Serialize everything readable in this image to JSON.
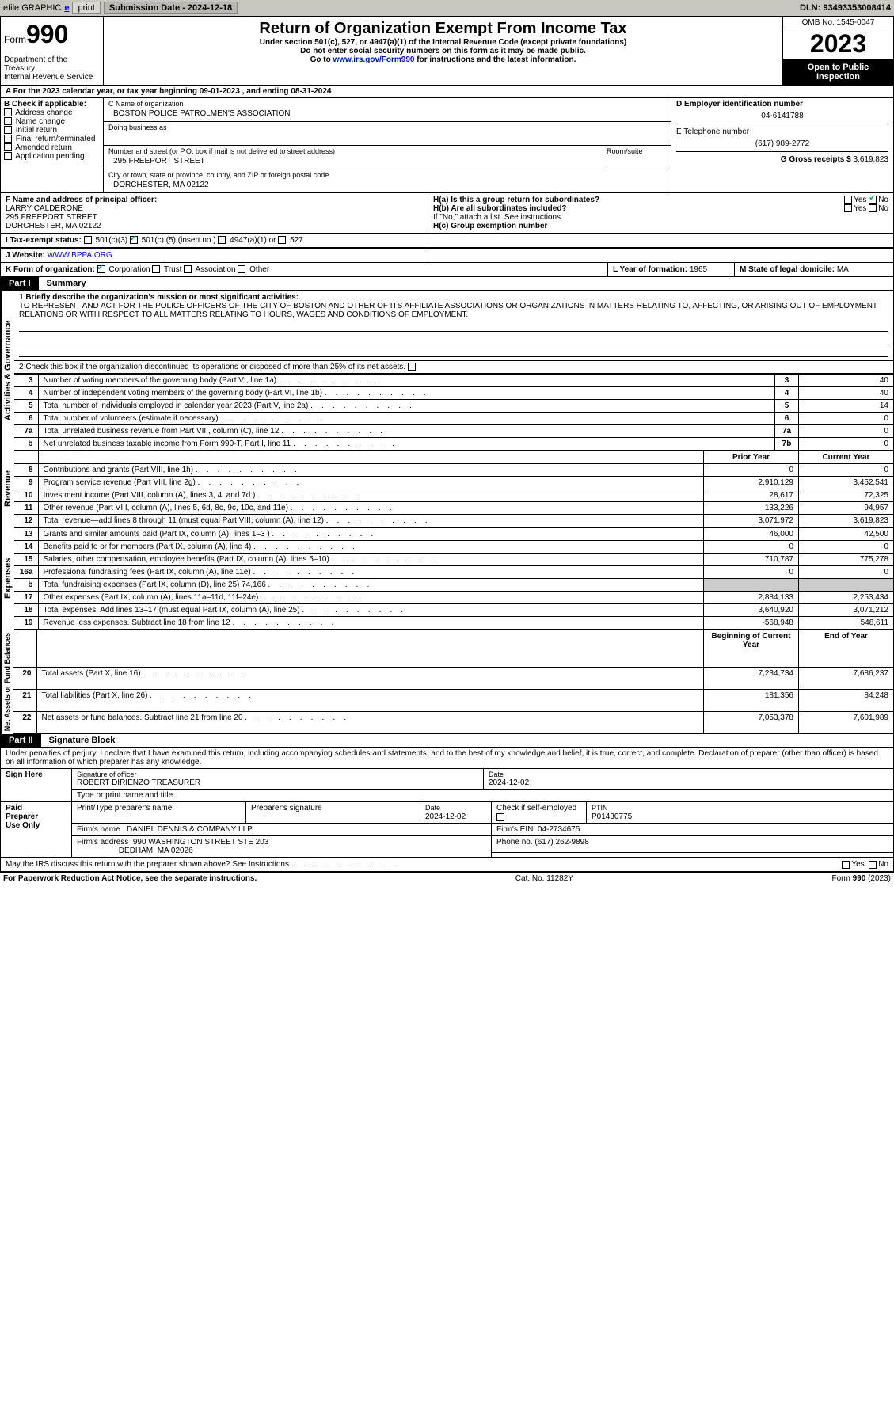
{
  "topbar": {
    "efile_label": "efile GRAPHIC",
    "print_btn": "print",
    "submission_label": "Submission Date - 2024-12-18",
    "dln_label": "DLN: 93493353008414"
  },
  "header": {
    "form_label": "Form",
    "form_no": "990",
    "dept": "Department of the Treasury",
    "irs": "Internal Revenue Service",
    "title": "Return of Organization Exempt From Income Tax",
    "subtitle1": "Under section 501(c), 527, or 4947(a)(1) of the Internal Revenue Code (except private foundations)",
    "subtitle2": "Do not enter social security numbers on this form as it may be made public.",
    "subtitle3_pre": "Go to ",
    "subtitle3_link": "www.irs.gov/Form990",
    "subtitle3_post": " for instructions and the latest information.",
    "omb": "OMB No. 1545-0047",
    "year": "2023",
    "otpi": "Open to Public Inspection"
  },
  "line_a": "A  For the 2023 calendar year, or tax year beginning 09-01-2023    , and ending 08-31-2024",
  "box_b": {
    "label": "B Check if applicable:",
    "items": [
      "Address change",
      "Name change",
      "Initial return",
      "Final return/terminated",
      "Amended return",
      "Application pending"
    ]
  },
  "box_c": {
    "name_label": "C Name of organization",
    "name": "BOSTON POLICE PATROLMEN'S ASSOCIATION",
    "dba_label": "Doing business as",
    "street_label": "Number and street (or P.O. box if mail is not delivered to street address)",
    "room_label": "Room/suite",
    "street": "295 FREEPORT STREET",
    "city_label": "City or town, state or province, country, and ZIP or foreign postal code",
    "city": "DORCHESTER, MA  02122"
  },
  "box_d": {
    "label": "D Employer identification number",
    "value": "04-6141788"
  },
  "box_e": {
    "label": "E Telephone number",
    "value": "(617) 989-2772"
  },
  "box_g": {
    "label": "G Gross receipts $",
    "value": "3,619,823"
  },
  "box_f": {
    "label": "F Name and address of principal officer:",
    "name": "LARRY CALDERONE",
    "street": "295 FREEPORT STREET",
    "city": "DORCHESTER, MA  02122"
  },
  "box_h": {
    "ha_label": "H(a)  Is this a group return for subordinates?",
    "hb_label": "H(b)  Are all subordinates included?",
    "hb_note": "If \"No,\" attach a list. See instructions.",
    "hc_label": "H(c)  Group exemption number",
    "yes": "Yes",
    "no": "No"
  },
  "line_i": {
    "label": "I     Tax-exempt status:",
    "opt1": "501(c)(3)",
    "opt2_a": "501(c) (",
    "opt2_b": "5",
    "opt2_c": ") (insert no.)",
    "opt3": "4947(a)(1) or",
    "opt4": "527"
  },
  "line_j": {
    "label": "J     Website:",
    "value": "WWW.BPPA.ORG"
  },
  "line_k": {
    "label": "K Form of organization:",
    "opts": [
      "Corporation",
      "Trust",
      "Association",
      "Other"
    ]
  },
  "line_l": {
    "label": "L Year of formation:",
    "value": "1965"
  },
  "line_m": {
    "label": "M State of legal domicile:",
    "value": "MA"
  },
  "part1": {
    "header": "Part I",
    "title": "Summary"
  },
  "summary": {
    "q1_label": "1   Briefly describe the organization's mission or most significant activities:",
    "q1_text": "TO REPRESENT AND ACT FOR THE POLICE OFFICERS OF THE CITY OF BOSTON AND OTHER OF ITS AFFILIATE ASSOCIATIONS OR ORGANIZATIONS IN MATTERS RELATING TO, AFFECTING, OR ARISING OUT OF EMPLOYMENT RELATIONS OR WITH RESPECT TO ALL MATTERS RELATING TO HOURS, WAGES AND CONDITIONS OF EMPLOYMENT.",
    "q2": "2   Check this box        if the organization discontinued its operations or disposed of more than 25% of its net assets.",
    "rows_ag": [
      {
        "n": "3",
        "t": "Number of voting members of the governing body (Part VI, line 1a)",
        "l": "3",
        "v": "40"
      },
      {
        "n": "4",
        "t": "Number of independent voting members of the governing body (Part VI, line 1b)",
        "l": "4",
        "v": "40"
      },
      {
        "n": "5",
        "t": "Total number of individuals employed in calendar year 2023 (Part V, line 2a)",
        "l": "5",
        "v": "14"
      },
      {
        "n": "6",
        "t": "Total number of volunteers (estimate if necessary)",
        "l": "6",
        "v": "0"
      },
      {
        "n": "7a",
        "t": "Total unrelated business revenue from Part VIII, column (C), line 12",
        "l": "7a",
        "v": "0"
      },
      {
        "n": "b",
        "t": "Net unrelated business taxable income from Form 990-T, Part I, line 11",
        "l": "7b",
        "v": "0"
      }
    ],
    "prior_label": "Prior Year",
    "current_label": "Current Year",
    "rows_rev": [
      {
        "n": "8",
        "t": "Contributions and grants (Part VIII, line 1h)",
        "p": "0",
        "c": "0"
      },
      {
        "n": "9",
        "t": "Program service revenue (Part VIII, line 2g)",
        "p": "2,910,129",
        "c": "3,452,541"
      },
      {
        "n": "10",
        "t": "Investment income (Part VIII, column (A), lines 3, 4, and 7d )",
        "p": "28,617",
        "c": "72,325"
      },
      {
        "n": "11",
        "t": "Other revenue (Part VIII, column (A), lines 5, 6d, 8c, 9c, 10c, and 11e)",
        "p": "133,226",
        "c": "94,957"
      },
      {
        "n": "12",
        "t": "Total revenue—add lines 8 through 11 (must equal Part VIII, column (A), line 12)",
        "p": "3,071,972",
        "c": "3,619,823"
      }
    ],
    "rows_exp": [
      {
        "n": "13",
        "t": "Grants and similar amounts paid (Part IX, column (A), lines 1–3 )",
        "p": "46,000",
        "c": "42,500"
      },
      {
        "n": "14",
        "t": "Benefits paid to or for members (Part IX, column (A), line 4)",
        "p": "0",
        "c": "0"
      },
      {
        "n": "15",
        "t": "Salaries, other compensation, employee benefits (Part IX, column (A), lines 5–10)",
        "p": "710,787",
        "c": "775,278"
      },
      {
        "n": "16a",
        "t": "Professional fundraising fees (Part IX, column (A), line 11e)",
        "p": "0",
        "c": "0"
      },
      {
        "n": "b",
        "t": "Total fundraising expenses (Part IX, column (D), line 25) 74,166",
        "p": "",
        "c": ""
      },
      {
        "n": "17",
        "t": "Other expenses (Part IX, column (A), lines 11a–11d, 11f–24e)",
        "p": "2,884,133",
        "c": "2,253,434"
      },
      {
        "n": "18",
        "t": "Total expenses. Add lines 13–17 (must equal Part IX, column (A), line 25)",
        "p": "3,640,920",
        "c": "3,071,212"
      },
      {
        "n": "19",
        "t": "Revenue less expenses. Subtract line 18 from line 12",
        "p": "-568,948",
        "c": "548,611"
      }
    ],
    "begin_label": "Beginning of Current Year",
    "end_label": "End of Year",
    "rows_na": [
      {
        "n": "20",
        "t": "Total assets (Part X, line 16)",
        "p": "7,234,734",
        "c": "7,686,237"
      },
      {
        "n": "21",
        "t": "Total liabilities (Part X, line 26)",
        "p": "181,356",
        "c": "84,248"
      },
      {
        "n": "22",
        "t": "Net assets or fund balances. Subtract line 21 from line 20",
        "p": "7,053,378",
        "c": "7,601,989"
      }
    ],
    "vlabels": {
      "ag": "Activities & Governance",
      "rev": "Revenue",
      "exp": "Expenses",
      "na": "Net Assets or Fund Balances"
    }
  },
  "part2": {
    "header": "Part II",
    "title": "Signature Block"
  },
  "perjury": "Under penalties of perjury, I declare that I have examined this return, including accompanying schedules and statements, and to the best of my knowledge and belief, it is true, correct, and complete. Declaration of preparer (other than officer) is based on all information of which preparer has any knowledge.",
  "sign": {
    "left": "Sign Here",
    "sig_label": "Signature of officer",
    "officer": "ROBERT DIRIENZO  TREASURER",
    "type_label": "Type or print name and title",
    "date_label": "Date",
    "date_val": "2024-12-02"
  },
  "preparer": {
    "left1": "Paid",
    "left2": "Preparer",
    "left3": "Use Only",
    "h1": "Print/Type preparer's name",
    "h2": "Preparer's signature",
    "h3": "Date",
    "date": "2024-12-02",
    "check_label": "Check         if self-employed",
    "ptin_label": "PTIN",
    "ptin": "P01430775",
    "firm_name_label": "Firm's name",
    "firm_name": "DANIEL DENNIS & COMPANY LLP",
    "firm_ein_label": "Firm's EIN",
    "firm_ein": "04-2734675",
    "firm_addr_label": "Firm's address",
    "firm_addr1": "990 WASHINGTON STREET STE 203",
    "firm_addr2": "DEDHAM, MA  02026",
    "phone_label": "Phone no.",
    "phone": "(617) 262-9898"
  },
  "discuss": {
    "text": "May the IRS discuss this return with the preparer shown above? See Instructions.",
    "yes": "Yes",
    "no": "No"
  },
  "footer": {
    "left": "For Paperwork Reduction Act Notice, see the separate instructions.",
    "mid": "Cat. No. 11282Y",
    "right": "Form 990 (2023)"
  }
}
